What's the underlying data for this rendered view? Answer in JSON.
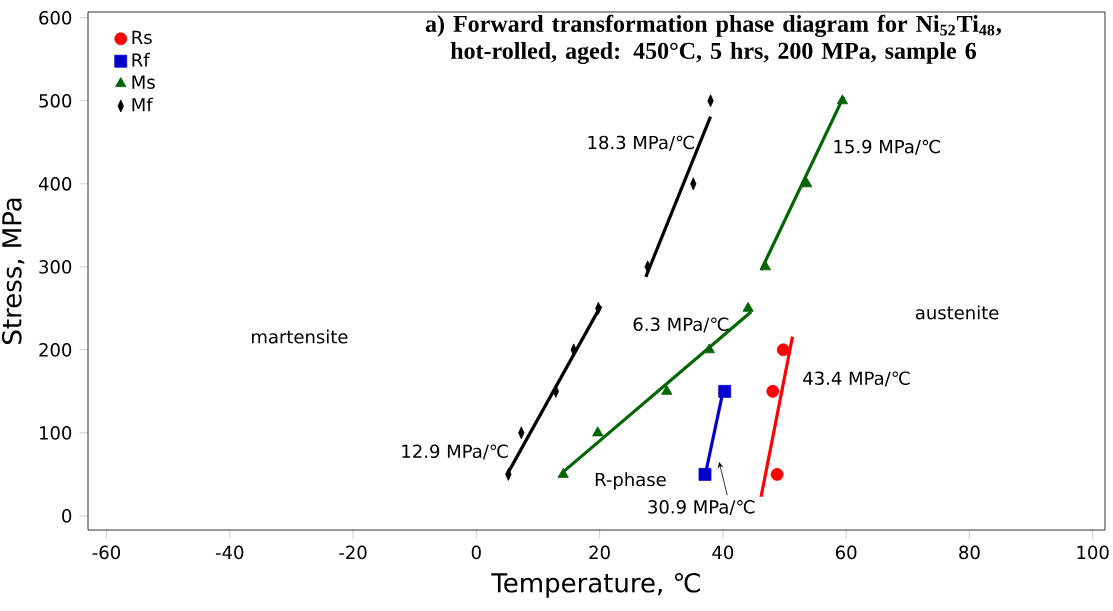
{
  "chart_data": {
    "type": "scatter",
    "title": "a) Forward transformation phase diagram for Ni$_{52}$Ti$_{48}$, hot-rolled, aged: 450°C, 5 hrs, 200 MPa, sample 6",
    "xlabel": "Temperature, ℃",
    "ylabel": "Stress, MPa",
    "xlim": [
      -63,
      102
    ],
    "ylim": [
      -17,
      607
    ],
    "xticks": [
      -60,
      -40,
      -20,
      0,
      20,
      40,
      60,
      80,
      100
    ],
    "yticks": [
      0,
      100,
      200,
      300,
      400,
      500,
      600
    ],
    "legend": "top left",
    "grid": false,
    "series": [
      {
        "name": "Rs",
        "marker": "circle",
        "color": "#ff0000",
        "x": [
          48.8,
          48.1,
          49.8
        ],
        "values": [
          50,
          150,
          200
        ]
      },
      {
        "name": "Rf",
        "marker": "square",
        "color": "#0000cc",
        "x": [
          37.1,
          40.3
        ],
        "values": [
          50,
          150
        ]
      },
      {
        "name": "Ms",
        "marker": "triangle",
        "color": "#006400",
        "x": [
          14.1,
          19.7,
          30.9,
          37.8,
          44.1,
          46.9,
          53.6,
          59.4
        ],
        "values": [
          50,
          100,
          150,
          200,
          250,
          300,
          400,
          500
        ]
      },
      {
        "name": "Mf",
        "marker": "diamond",
        "color": "#000000",
        "x": [
          5.2,
          7.3,
          12.9,
          15.8,
          19.8,
          27.8,
          35.2,
          38.0
        ],
        "values": [
          50,
          100,
          150,
          200,
          250,
          300,
          400,
          500
        ]
      },
      {
        "type": "line",
        "marker": "none",
        "color": "#000000",
        "x": [
          5.0,
          20.2
        ],
        "values": [
          50,
          253
        ]
      },
      {
        "type": "line",
        "marker": "none",
        "color": "#000000",
        "x": [
          27.5,
          38.0
        ],
        "values": [
          288,
          481
        ]
      },
      {
        "type": "line",
        "marker": "none",
        "color": "#006400",
        "x": [
          14.1,
          44.6
        ],
        "values": [
          53,
          246
        ]
      },
      {
        "type": "line",
        "marker": "none",
        "color": "#006400",
        "x": [
          46.2,
          59.6
        ],
        "values": [
          296,
          505
        ]
      },
      {
        "type": "line",
        "marker": "none",
        "color": "#0000cc",
        "x": [
          37.3,
          40.0
        ],
        "values": [
          55,
          149
        ]
      },
      {
        "type": "line",
        "marker": "none",
        "color": "#ff0000",
        "x": [
          46.2,
          51.3
        ],
        "values": [
          23,
          216
        ]
      }
    ],
    "annotations": [
      "18.3 MPa/℃",
      "15.9 MPa/℃",
      "6.3 MPa/℃",
      "43.4 MPa/℃",
      "12.9 MPa/℃",
      "30.9 MPa/℃",
      "R-phase",
      "martensite",
      "austenite"
    ]
  }
}
